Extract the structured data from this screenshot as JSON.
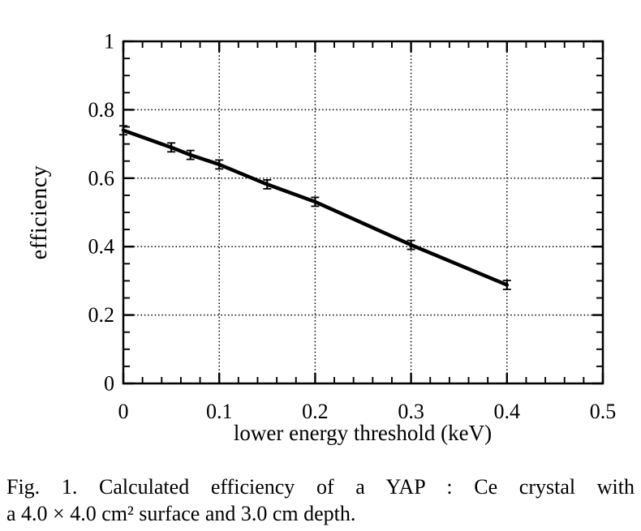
{
  "figure": {
    "caption_line1": "Fig. 1. Calculated  efficiency  of  a  YAP : Ce  crystal  with",
    "caption_line2": "a 4.0 × 4.0 cm² surface and 3.0 cm depth."
  },
  "colors": {
    "ink": "#000000",
    "paper": "#ffffff"
  },
  "chart_data": {
    "type": "line",
    "title": "",
    "xlabel": "lower energy threshold (keV)",
    "ylabel": "efficiency",
    "xlim": [
      0,
      0.5
    ],
    "ylim": [
      0,
      1
    ],
    "x_ticks": {
      "values": [
        0,
        0.1,
        0.2,
        0.3,
        0.4,
        0.5
      ],
      "labels": [
        "0",
        "0.1",
        "0.2",
        "0.3",
        "0.4",
        "0.5"
      ],
      "minor_step": 0.02
    },
    "y_ticks": {
      "values": [
        0,
        0.2,
        0.4,
        0.6,
        0.8,
        1
      ],
      "labels": [
        "0",
        "0.2",
        "0.4",
        "0.6",
        "0.8",
        "1"
      ],
      "minor_step": 0.05
    },
    "grid": {
      "x_values": [
        0.1,
        0.2,
        0.3,
        0.4
      ],
      "y_values": [
        0.2,
        0.4,
        0.6,
        0.8
      ],
      "style": "dotted"
    },
    "legend": "none",
    "series": [
      {
        "name": "calculated efficiency",
        "x": [
          0,
          0.05,
          0.07,
          0.1,
          0.15,
          0.2,
          0.3,
          0.4
        ],
        "y": [
          0.74,
          0.69,
          0.668,
          0.64,
          0.582,
          0.531,
          0.405,
          0.288
        ],
        "y_err": 0.013
      }
    ]
  }
}
